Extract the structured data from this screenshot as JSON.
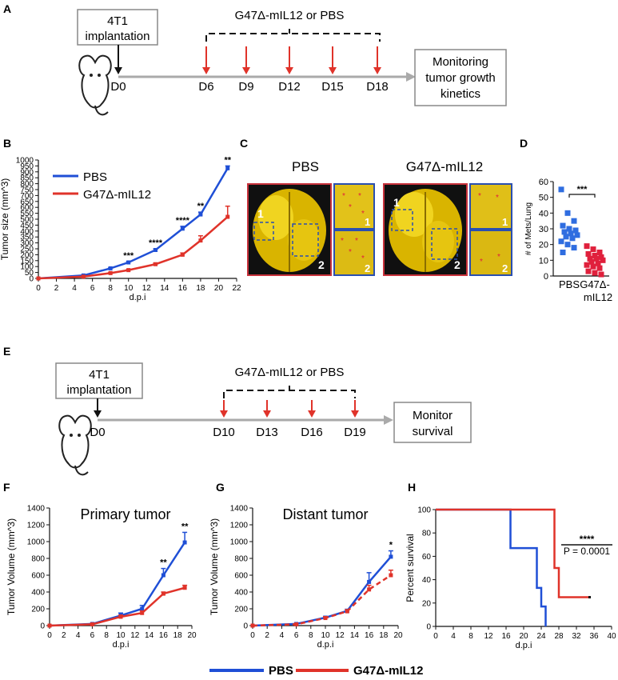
{
  "panel_letters": {
    "A": "A",
    "B": "B",
    "C": "C",
    "D": "D",
    "E": "E",
    "F": "F",
    "G": "G",
    "H": "H"
  },
  "timeline_a": {
    "implant_box": [
      "4T1",
      "implantation"
    ],
    "treatment_label": "G47Δ-mIL12 or PBS",
    "start_day": "D0",
    "treatment_days": [
      "D6",
      "D9",
      "D12",
      "D15",
      "D18"
    ],
    "end_box": [
      "Monitoring",
      "tumor growth",
      "kinetics"
    ]
  },
  "timeline_e": {
    "implant_box": [
      "4T1",
      "implantation"
    ],
    "treatment_label": "G47Δ-mIL12 or PBS",
    "start_day": "D0",
    "treatment_days": [
      "D10",
      "D13",
      "D16",
      "D19"
    ],
    "end_box": [
      "Monitor",
      "survival"
    ]
  },
  "panel_c": {
    "labels": [
      "PBS",
      "G47Δ-mIL12"
    ],
    "region_labels": [
      "1",
      "2"
    ],
    "colors": {
      "lung": "#e8c200",
      "frame": "#c8323c",
      "inset_frame": "#2a4fb0"
    }
  },
  "legend_bottom": {
    "items": [
      {
        "name": "PBS",
        "color": "#1f4fd6"
      },
      {
        "name": "G47Δ-mIL12",
        "color": "#e0332a"
      }
    ]
  },
  "chart_data": [
    {
      "id": "B",
      "type": "line",
      "xlabel": "d.p.i",
      "ylabel": "Tumor size (mm^3)",
      "xlim": [
        0,
        22
      ],
      "ylim": [
        0,
        1000
      ],
      "xticks": [
        0,
        2,
        4,
        6,
        8,
        10,
        12,
        14,
        16,
        18,
        20,
        22
      ],
      "yticks": [
        0,
        50,
        100,
        150,
        200,
        250,
        300,
        350,
        400,
        450,
        500,
        550,
        600,
        650,
        700,
        750,
        800,
        850,
        900,
        950,
        1000
      ],
      "x": [
        0,
        5,
        8,
        10,
        13,
        16,
        18,
        21
      ],
      "series": [
        {
          "name": "PBS",
          "color": "#1f4fd6",
          "values": [
            0,
            25,
            85,
            135,
            240,
            420,
            540,
            930
          ],
          "err": [
            0,
            3,
            6,
            8,
            10,
            20,
            20,
            20
          ]
        },
        {
          "name": "G47Δ-mIL12",
          "color": "#e0332a",
          "values": [
            0,
            15,
            45,
            70,
            120,
            200,
            320,
            520
          ],
          "err": [
            0,
            3,
            5,
            6,
            10,
            15,
            40,
            90
          ]
        }
      ],
      "legend": {
        "placement": "top-left",
        "items": [
          "PBS",
          "G47Δ-mIL12"
        ]
      },
      "significance": [
        {
          "x": 10,
          "label": "***"
        },
        {
          "x": 13,
          "label": "****"
        },
        {
          "x": 16,
          "label": "****"
        },
        {
          "x": 18,
          "label": "**"
        },
        {
          "x": 21,
          "label": "**"
        }
      ]
    },
    {
      "id": "D",
      "type": "scatter",
      "xlabel": "",
      "ylabel": "# of Mets/Lung",
      "ylim": [
        0,
        60
      ],
      "yticks": [
        0,
        10,
        20,
        30,
        40,
        50,
        60
      ],
      "categories": [
        "PBS",
        "G47Δ-mIL12"
      ],
      "category_labels": [
        [
          "PBS"
        ],
        [
          "G47Δ-",
          "mIL12"
        ]
      ],
      "series": [
        {
          "name": "PBS",
          "color": "#2f6de0",
          "values": [
            55,
            40,
            35,
            32,
            30,
            29,
            28,
            27,
            26,
            25,
            24,
            22,
            20,
            18,
            15
          ]
        },
        {
          "name": "G47Δ-mIL12",
          "color": "#e0203c",
          "values": [
            19,
            17,
            15,
            14,
            13,
            12,
            11,
            11,
            10,
            9,
            8,
            7,
            6,
            5,
            3,
            2,
            1
          ]
        }
      ],
      "significance": "***"
    },
    {
      "id": "F",
      "type": "line",
      "title": "Primary tumor",
      "xlabel": "d.p.i",
      "ylabel": "Tumor Volume (mm^3)",
      "xlim": [
        0,
        20
      ],
      "ylim": [
        0,
        1400
      ],
      "xticks": [
        0,
        2,
        4,
        6,
        8,
        10,
        12,
        14,
        16,
        18,
        20
      ],
      "yticks": [
        0,
        200,
        400,
        600,
        800,
        1000,
        1200,
        1400
      ],
      "x": [
        0,
        6,
        10,
        13,
        16,
        19
      ],
      "series": [
        {
          "name": "PBS",
          "color": "#1f4fd6",
          "values": [
            0,
            20,
            120,
            200,
            600,
            990
          ],
          "err": [
            0,
            5,
            30,
            40,
            80,
            120
          ],
          "dash": false
        },
        {
          "name": "G47Δ-mIL12",
          "color": "#e0332a",
          "values": [
            0,
            15,
            105,
            150,
            380,
            450
          ],
          "err": [
            0,
            5,
            20,
            25,
            20,
            30
          ],
          "dash": false
        }
      ],
      "significance": [
        {
          "x": 16,
          "label": "**"
        },
        {
          "x": 19,
          "label": "**"
        }
      ]
    },
    {
      "id": "G",
      "type": "line",
      "title": "Distant tumor",
      "xlabel": "d.p.i",
      "ylabel": "Tumor Volume (mm^3)",
      "xlim": [
        0,
        20
      ],
      "ylim": [
        0,
        1400
      ],
      "xticks": [
        0,
        2,
        4,
        6,
        8,
        10,
        12,
        14,
        16,
        18,
        20
      ],
      "yticks": [
        0,
        200,
        400,
        600,
        800,
        1000,
        1200,
        1400
      ],
      "x": [
        0,
        6,
        10,
        13,
        16,
        19
      ],
      "series": [
        {
          "name": "PBS",
          "color": "#1f4fd6",
          "values": [
            0,
            20,
            95,
            175,
            520,
            820
          ],
          "err": [
            0,
            5,
            15,
            20,
            110,
            70
          ],
          "dash": false
        },
        {
          "name": "G47Δ-mIL12",
          "color": "#e0332a",
          "values": [
            0,
            15,
            90,
            170,
            430,
            600
          ],
          "err": [
            0,
            5,
            15,
            20,
            50,
            60
          ],
          "dash": true
        }
      ],
      "significance": [
        {
          "x": 19,
          "label": "*"
        }
      ]
    },
    {
      "id": "H",
      "type": "line",
      "xlabel": "d.p.i",
      "ylabel": "Percent survival",
      "xlim": [
        0,
        40
      ],
      "ylim": [
        0,
        100
      ],
      "xticks": [
        0,
        4,
        8,
        12,
        16,
        20,
        24,
        28,
        32,
        36,
        40
      ],
      "yticks": [
        0,
        20,
        40,
        60,
        80,
        100
      ],
      "series": [
        {
          "name": "PBS",
          "color": "#1f4fd6",
          "steps": [
            [
              0,
              100
            ],
            [
              17,
              100
            ],
            [
              17,
              67
            ],
            [
              23,
              67
            ],
            [
              23,
              33
            ],
            [
              24,
              33
            ],
            [
              24,
              17
            ],
            [
              25,
              17
            ],
            [
              25,
              0
            ]
          ]
        },
        {
          "name": "G47Δ-mIL12",
          "color": "#e0332a",
          "steps": [
            [
              0,
              100
            ],
            [
              27,
              100
            ],
            [
              27,
              50
            ],
            [
              28,
              50
            ],
            [
              28,
              25
            ],
            [
              35,
              25
            ]
          ]
        }
      ],
      "significance": "****",
      "p_value": "P = 0.0001"
    }
  ]
}
